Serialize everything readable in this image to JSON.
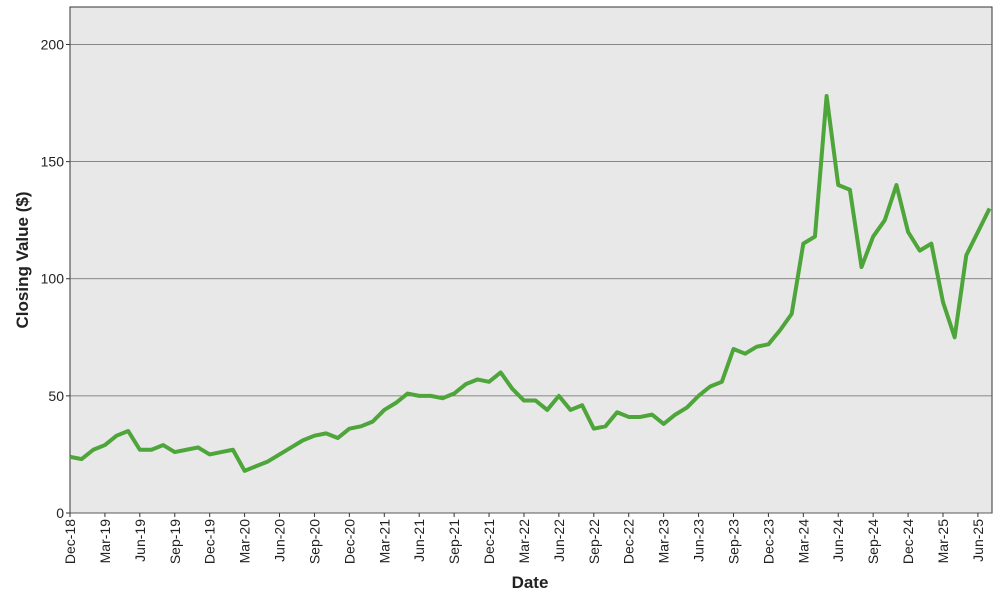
{
  "chart_data": {
    "type": "line",
    "x_label": "Date",
    "y_label": "Closing Value ($)",
    "categories": [
      "Dec-18",
      null,
      null,
      "Mar-19",
      null,
      null,
      "Jun-19",
      null,
      null,
      "Sep-19",
      null,
      null,
      "Dec-19",
      null,
      null,
      "Mar-20",
      null,
      null,
      "Jun-20",
      null,
      null,
      "Sep-20",
      null,
      null,
      "Dec-20",
      null,
      null,
      "Mar-21",
      null,
      null,
      "Jun-21",
      null,
      null,
      "Sep-21",
      null,
      null,
      "Dec-21",
      null,
      null,
      "Mar-22",
      null,
      null,
      "Jun-22",
      null,
      null,
      "Sep-22",
      null,
      null,
      "Dec-22",
      null,
      null,
      "Mar-23",
      null,
      null,
      "Jun-23",
      null,
      null,
      "Sep-23",
      null,
      null,
      "Dec-23",
      null,
      null,
      "Mar-24",
      null,
      null,
      "Jun-24",
      null,
      null,
      "Sep-24",
      null,
      null,
      "Dec-24",
      null,
      null,
      "Mar-25",
      null,
      null,
      "Jun-25",
      null
    ],
    "series": [
      {
        "color": "#4ea53a",
        "values": [
          24,
          23,
          27,
          29,
          33,
          35,
          27,
          27,
          29,
          26,
          27,
          28,
          25,
          26,
          27,
          18,
          20,
          22,
          25,
          28,
          31,
          33,
          34,
          32,
          36,
          37,
          39,
          44,
          47,
          51,
          50,
          50,
          49,
          51,
          55,
          57,
          56,
          60,
          53,
          48,
          48,
          44,
          50,
          44,
          46,
          36,
          37,
          43,
          41,
          41,
          42,
          38,
          42,
          45,
          50,
          54,
          56,
          70,
          68,
          71,
          72,
          78,
          85,
          115,
          118,
          178,
          140,
          138,
          105,
          118,
          125,
          140,
          120,
          112,
          115,
          90,
          75,
          110,
          120,
          130
        ]
      }
    ],
    "ylim": [
      0,
      216
    ],
    "yticks": [
      0,
      50,
      100,
      150,
      200
    ],
    "grid": true
  }
}
